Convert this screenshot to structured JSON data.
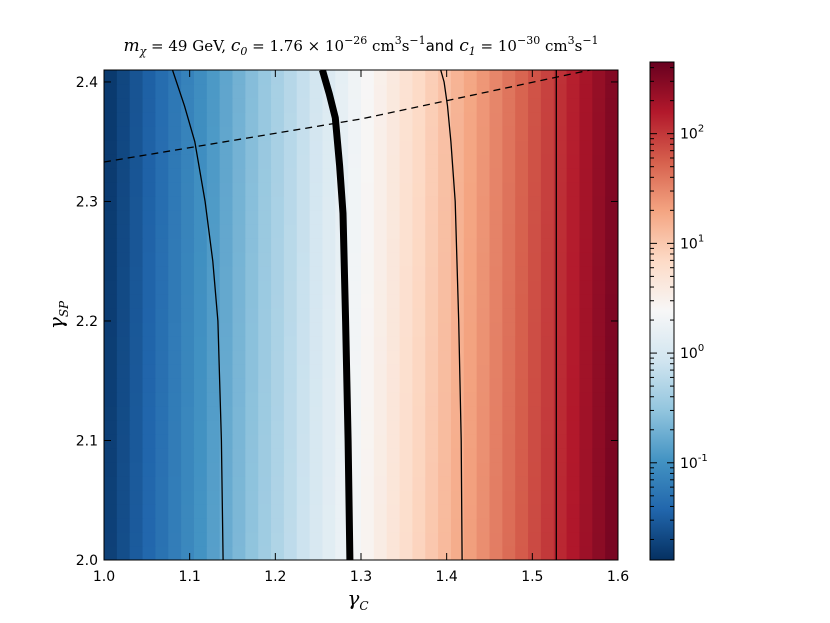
{
  "chart_data": {
    "type": "heatmap",
    "title": {
      "m_symbol": "m",
      "m_sub": "χ",
      "m_eq": " = 49 GeV, ",
      "c0_symbol": "c",
      "c0_sub": "0",
      "c0_eq": " = 1.76 × 10",
      "c0_exp": "−26",
      "units1": " cm",
      "units1_exp1": "3",
      "units1_s": "s",
      "units1_exp2": "−1",
      "and_word": "and",
      "c1_symbol": " c",
      "c1_sub": "1",
      "c1_eq": " = 10",
      "c1_exp": "−30",
      "units2": " cm",
      "units2_exp1": "3",
      "units2_s": "s",
      "units2_exp2": "−1"
    },
    "xlabel": {
      "symbol": "γ",
      "sub": "C"
    },
    "ylabel": {
      "symbol": "γ",
      "sub": "SP"
    },
    "xlim": [
      1.0,
      1.6
    ],
    "ylim": [
      2.0,
      2.41
    ],
    "xticks": [
      1.0,
      1.1,
      1.2,
      1.3,
      1.4,
      1.5,
      1.6
    ],
    "xtick_labels": [
      "1.0",
      "1.1",
      "1.2",
      "1.3",
      "1.4",
      "1.5",
      "1.6"
    ],
    "yticks": [
      2.0,
      2.1,
      2.2,
      2.3,
      2.4
    ],
    "ytick_labels": [
      "2.0",
      "2.1",
      "2.2",
      "2.3",
      "2.4"
    ],
    "colormap": "RdBu_r",
    "color_scale": "log",
    "zlim": [
      0.013,
      450
    ],
    "colorbar_ticks": [
      0.1,
      1,
      10,
      100
    ],
    "colorbar_labels": [
      {
        "base": "10",
        "exp": "-1"
      },
      {
        "base": "10",
        "exp": "0"
      },
      {
        "base": "10",
        "exp": "1"
      },
      {
        "base": "10",
        "exp": "2"
      }
    ],
    "field_model": {
      "log10_at_xmin": -1.8,
      "log10_at_xmax": 2.6,
      "y_drift_per_unit": -0.15
    },
    "contours": [
      {
        "name": "contour-low",
        "style": "thin",
        "x": [
          1.139,
          1.137,
          1.133,
          1.127,
          1.118,
          1.106,
          1.094,
          1.08
        ],
        "y": [
          2.0,
          2.1,
          2.2,
          2.25,
          2.3,
          2.35,
          2.38,
          2.41
        ]
      },
      {
        "name": "contour-unity",
        "style": "thick",
        "x": [
          1.287,
          1.285,
          1.282,
          1.279,
          1.275,
          1.27,
          1.263,
          1.255
        ],
        "y": [
          2.0,
          2.1,
          2.2,
          2.29,
          2.33,
          2.37,
          2.39,
          2.41
        ]
      },
      {
        "name": "contour-mid",
        "style": "thin",
        "x": [
          1.418,
          1.417,
          1.414,
          1.41,
          1.405,
          1.401,
          1.397,
          1.393
        ],
        "y": [
          2.0,
          2.1,
          2.2,
          2.3,
          2.35,
          2.38,
          2.4,
          2.41
        ]
      },
      {
        "name": "contour-high",
        "style": "thin",
        "x": [
          1.528,
          1.528,
          1.528,
          1.528,
          1.528,
          1.528
        ],
        "y": [
          2.0,
          2.1,
          2.2,
          2.3,
          2.4,
          2.41
        ]
      },
      {
        "name": "dashed-boundary",
        "style": "dashed",
        "x": [
          1.0,
          1.3,
          1.6
        ],
        "y": [
          2.333,
          2.369,
          2.415
        ]
      }
    ]
  }
}
